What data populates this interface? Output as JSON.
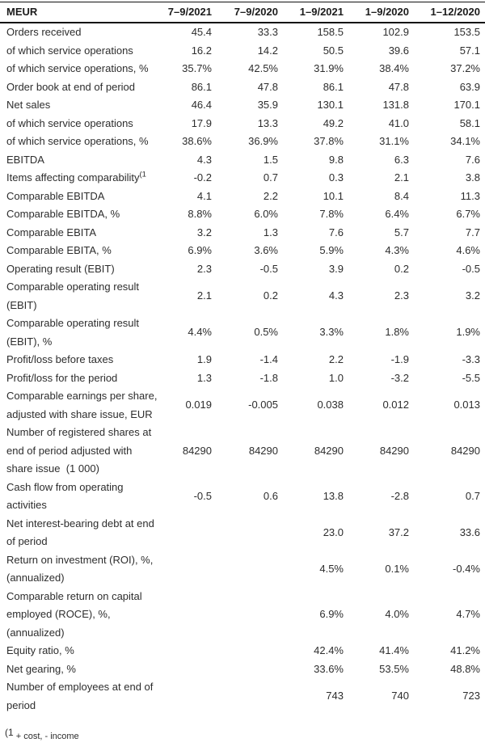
{
  "page": {
    "background_color": "#ffffff",
    "text_color": "#2d2d2d",
    "border_color": "#111111"
  },
  "table": {
    "columns": [
      "MEUR",
      "7–9/2021",
      "7–9/2020",
      "1–9/2021",
      "1–9/2020",
      "1–12/2020"
    ],
    "rows": [
      {
        "label": "Orders received",
        "values": [
          "45.4",
          "33.3",
          "158.5",
          "102.9",
          "153.5"
        ]
      },
      {
        "label": "of which service operations",
        "values": [
          "16.2",
          "14.2",
          "50.5",
          "39.6",
          "57.1"
        ]
      },
      {
        "label": "of which service operations, %",
        "values": [
          "35.7%",
          "42.5%",
          "31.9%",
          "38.4%",
          "37.2%"
        ]
      },
      {
        "label": "Order book at end of period",
        "values": [
          "86.1",
          "47.8",
          "86.1",
          "47.8",
          "63.9"
        ]
      },
      {
        "label": "Net sales",
        "values": [
          "46.4",
          "35.9",
          "130.1",
          "131.8",
          "170.1"
        ]
      },
      {
        "label": "of which service operations",
        "values": [
          "17.9",
          "13.3",
          "49.2",
          "41.0",
          "58.1"
        ]
      },
      {
        "label": "of which service operations, %",
        "values": [
          "38.6%",
          "36.9%",
          "37.8%",
          "31.1%",
          "34.1%"
        ]
      },
      {
        "label": "EBITDA",
        "values": [
          "4.3",
          "1.5",
          "9.8",
          "6.3",
          "7.6"
        ]
      },
      {
        "label": "Items affecting comparability",
        "label_sup": "(1",
        "values": [
          "-0.2",
          "0.7",
          "0.3",
          "2.1",
          "3.8"
        ]
      },
      {
        "label": "Comparable EBITDA",
        "values": [
          "4.1",
          "2.2",
          "10.1",
          "8.4",
          "11.3"
        ]
      },
      {
        "label": "Comparable EBITDA, %",
        "values": [
          "8.8%",
          "6.0%",
          "7.8%",
          "6.4%",
          "6.7%"
        ]
      },
      {
        "label": "Comparable EBITA",
        "values": [
          "3.2",
          "1.3",
          "7.6",
          "5.7",
          "7.7"
        ]
      },
      {
        "label": "Comparable EBITA, %",
        "values": [
          "6.9%",
          "3.6%",
          "5.9%",
          "4.3%",
          "4.6%"
        ]
      },
      {
        "label": "Operating result (EBIT)",
        "values": [
          "2.3",
          "-0.5",
          "3.9",
          "0.2",
          "-0.5"
        ]
      },
      {
        "label": "Comparable operating result\n(EBIT)",
        "values": [
          "2.1",
          "0.2",
          "4.3",
          "2.3",
          "3.2"
        ]
      },
      {
        "label": "Comparable operating result\n(EBIT), %",
        "values": [
          "4.4%",
          "0.5%",
          "3.3%",
          "1.8%",
          "1.9%"
        ]
      },
      {
        "label": "Profit/loss before taxes",
        "values": [
          "1.9",
          "-1.4",
          "2.2",
          "-1.9",
          "-3.3"
        ]
      },
      {
        "label": "Profit/loss for the period",
        "values": [
          "1.3",
          "-1.8",
          "1.0",
          "-3.2",
          "-5.5"
        ]
      },
      {
        "label": "Comparable earnings per share,\nadjusted with share issue, EUR",
        "values": [
          "0.019",
          "-0.005",
          "0.038",
          "0.012",
          "0.013"
        ]
      },
      {
        "label": "Number of registered shares at\nend of period adjusted with\nshare issue  (1 000)",
        "values": [
          "84290",
          "84290",
          "84290",
          "84290",
          "84290"
        ]
      },
      {
        "label": "Cash flow from operating\nactivities",
        "values": [
          "-0.5",
          "0.6",
          "13.8",
          "-2.8",
          "0.7"
        ]
      },
      {
        "label": "Net interest-bearing debt at end\nof period",
        "values": [
          "",
          "",
          "23.0",
          "37.2",
          "33.6"
        ]
      },
      {
        "label": "Return on investment (ROI), %,\n(annualized)",
        "values": [
          "",
          "",
          "4.5%",
          "0.1%",
          "-0.4%"
        ]
      },
      {
        "label": "Comparable return on capital\nemployed (ROCE), %,\n(annualized)",
        "values": [
          "",
          "",
          "6.9%",
          "4.0%",
          "4.7%"
        ]
      },
      {
        "label": "Equity ratio, %",
        "values": [
          "",
          "",
          "42.4%",
          "41.4%",
          "41.2%"
        ]
      },
      {
        "label": "Net gearing, %",
        "values": [
          "",
          "",
          "33.6%",
          "53.5%",
          "48.8%"
        ]
      },
      {
        "label": "Number of employees at end of\nperiod",
        "values": [
          "",
          "",
          "743",
          "740",
          "723"
        ]
      }
    ]
  },
  "footnote": {
    "marker": "(1",
    "text": " + cost, - income"
  }
}
